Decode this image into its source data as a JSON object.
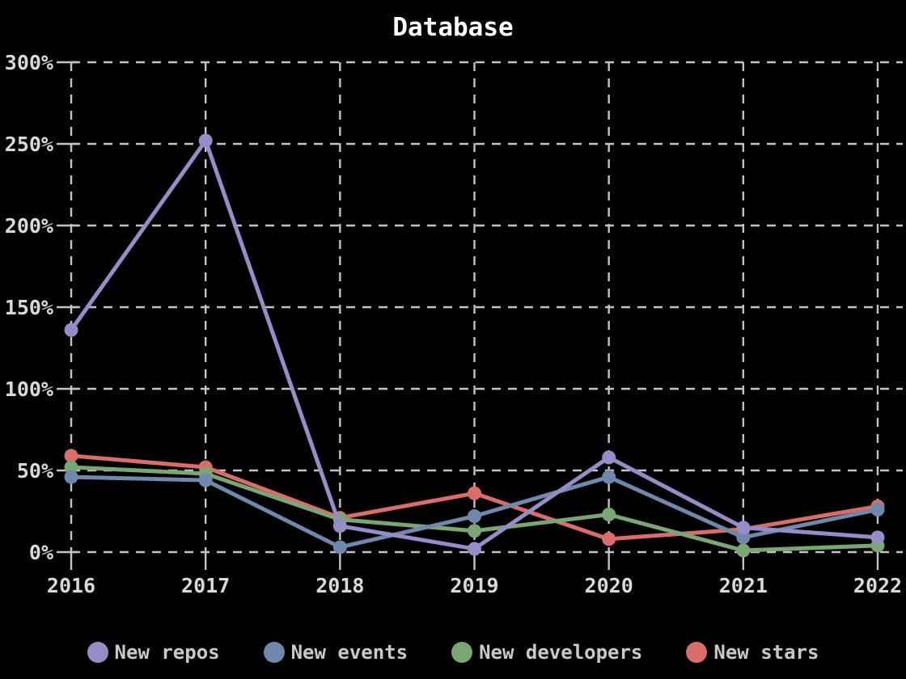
{
  "chart_data": {
    "type": "line",
    "title": "Database",
    "x": [
      "2016",
      "2017",
      "2018",
      "2019",
      "2020",
      "2021",
      "2022"
    ],
    "y_axis": {
      "unit": "%",
      "min": 0,
      "max": 300,
      "tick_step": 50,
      "tick_labels": [
        "0%",
        "50%",
        "100%",
        "150%",
        "200%",
        "250%",
        "300%"
      ]
    },
    "grid": "dashed",
    "legend_position": "bottom",
    "series": [
      {
        "name": "New repos",
        "color": "#968dc8",
        "values": [
          136,
          252,
          16,
          2,
          58,
          15,
          9
        ]
      },
      {
        "name": "New events",
        "color": "#6f88ab",
        "values": [
          46,
          44,
          3,
          22,
          46,
          9,
          26
        ]
      },
      {
        "name": "New developers",
        "color": "#7aa674",
        "values": [
          52,
          48,
          20,
          13,
          23,
          1,
          4
        ]
      },
      {
        "name": "New stars",
        "color": "#da6c6c",
        "values": [
          59,
          52,
          21,
          36,
          8,
          14,
          28
        ]
      }
    ],
    "style": {
      "background": "#000000",
      "title_color": "#ffffff",
      "axis_label_color": "#d9d9d9",
      "grid_color": "#c3c3c3",
      "legend_text_color": "#c9c9c9"
    }
  }
}
